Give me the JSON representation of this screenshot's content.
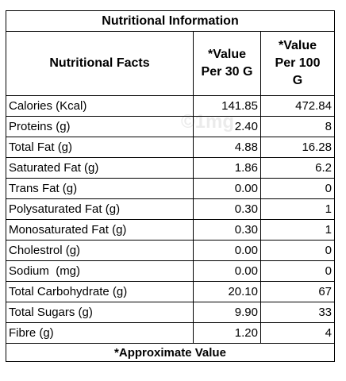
{
  "header": {
    "title": "Nutritional Information"
  },
  "table": {
    "columns": [
      "Nutritional Facts",
      "*Value Per 30 G",
      "*Value Per 100 G"
    ],
    "rows": [
      [
        "Calories (Kcal)",
        "141.85",
        "472.84"
      ],
      [
        "Proteins (g)",
        "2.40",
        "8"
      ],
      [
        "Total Fat (g)",
        "4.88",
        "16.28"
      ],
      [
        "Saturated Fat (g)",
        "1.86",
        "6.2"
      ],
      [
        "Trans Fat (g)",
        "0.00",
        "0"
      ],
      [
        "Polysaturated Fat (g)",
        "0.30",
        "1"
      ],
      [
        "Monosaturated Fat (g)",
        "0.30",
        "1"
      ],
      [
        "Cholestrol (g)",
        "0.00",
        "0"
      ],
      [
        "Sodium  (mg)",
        "0.00",
        "0"
      ],
      [
        "Total Carbohydrate (g)",
        "20.10",
        "67"
      ],
      [
        "Total Sugars (g)",
        "9.90",
        "33"
      ],
      [
        "Fibre (g)",
        "1.20",
        "4"
      ]
    ]
  },
  "footer": {
    "note": "*Approximate Value"
  },
  "watermark": "©1mg"
}
